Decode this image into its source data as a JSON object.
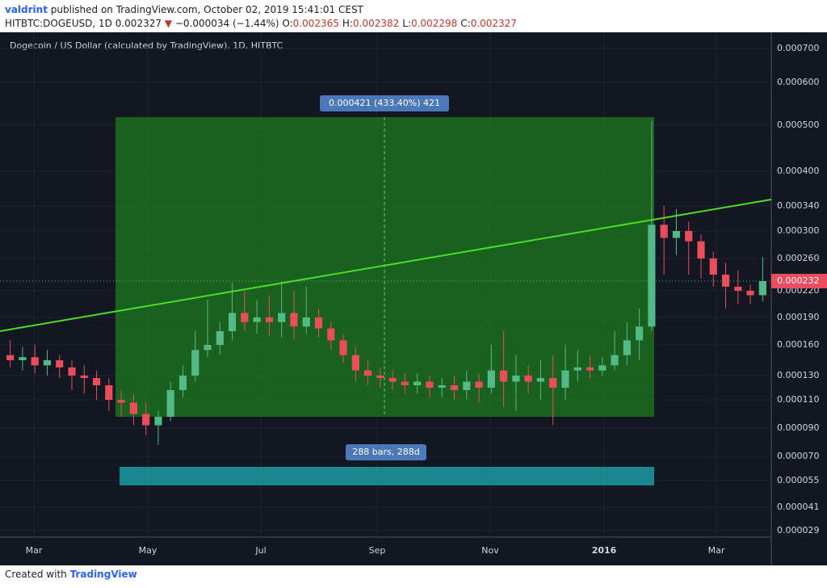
{
  "header": {
    "author": "valdrint",
    "published": "published on TradingView.com, October 02, 2019 15:41:01 CEST",
    "symbol": "HITBTC:DOGEUSD, 1D",
    "last": "0.002327",
    "arrow": "▼",
    "change": "−0.000034 (−1.44%)",
    "ohlc": [
      {
        "label": "O:",
        "value": "0.002365"
      },
      {
        "label": "H:",
        "value": "0.002382"
      },
      {
        "label": "L:",
        "value": "0.002298"
      },
      {
        "label": "C:",
        "value": "0.002327"
      }
    ]
  },
  "chart_data": {
    "type": "candlestick",
    "title": "Dogecoin / US Dollar (calculated by TradingView), 1D, HITBTC",
    "up_color": "#53b987",
    "down_color": "#eb4d5c",
    "open": [
      0.00015,
      0.000145,
      0.000148,
      0.00014,
      0.000145,
      0.000138,
      0.00013,
      0.000128,
      0.000122,
      0.00011,
      0.000108,
      0.0001,
      9.2e-05,
      9.8e-05,
      0.000118,
      0.00013,
      0.000155,
      0.00016,
      0.000175,
      0.000195,
      0.000185,
      0.00019,
      0.000185,
      0.000195,
      0.00018,
      0.00019,
      0.000178,
      0.000165,
      0.00015,
      0.000135,
      0.00013,
      0.000128,
      0.000125,
      0.000122,
      0.000125,
      0.00012,
      0.000122,
      0.000118,
      0.000125,
      0.00012,
      0.000135,
      0.000125,
      0.00013,
      0.000125,
      0.000128,
      0.00012,
      0.000135,
      0.000138,
      0.000135,
      0.00014,
      0.00015,
      0.000165,
      0.00018,
      0.00031,
      0.00029,
      0.0003,
      0.000285,
      0.00026,
      0.00024,
      0.000225,
      0.00022,
      0.000215
    ],
    "high": [
      0.000165,
      0.000158,
      0.00016,
      0.000155,
      0.00015,
      0.000145,
      0.00014,
      0.000135,
      0.000128,
      0.000118,
      0.000115,
      0.000108,
      0.000102,
      0.000125,
      0.00014,
      0.000175,
      0.00021,
      0.000185,
      0.00023,
      0.00022,
      0.00021,
      0.000215,
      0.000232,
      0.00022,
      0.000225,
      0.0002,
      0.000185,
      0.000172,
      0.000158,
      0.000145,
      0.000138,
      0.000135,
      0.000132,
      0.000132,
      0.00013,
      0.000128,
      0.00013,
      0.000135,
      0.000132,
      0.00016,
      0.000175,
      0.00015,
      0.00014,
      0.000145,
      0.00015,
      0.00016,
      0.000155,
      0.00015,
      0.000148,
      0.000175,
      0.000185,
      0.0002,
      0.00051,
      0.00034,
      0.000335,
      0.000315,
      0.000295,
      0.00027,
      0.000255,
      0.000245,
      0.000228,
      0.000262
    ],
    "low": [
      0.000138,
      0.000135,
      0.000132,
      0.00013,
      0.000128,
      0.000118,
      0.000115,
      0.00011,
      0.000102,
      9.8e-05,
      9.2e-05,
      8.5e-05,
      7.8e-05,
      9.5e-05,
      0.000112,
      0.000125,
      0.000148,
      0.00015,
      0.000165,
      0.000175,
      0.000172,
      0.00017,
      0.000168,
      0.000165,
      0.000172,
      0.000168,
      0.000155,
      0.000142,
      0.000125,
      0.000122,
      0.00012,
      0.000118,
      0.000115,
      0.000115,
      0.000112,
      0.000112,
      0.00011,
      0.00011,
      0.000108,
      0.000115,
      0.000105,
      0.000102,
      0.000115,
      0.00011,
      9.2e-05,
      0.00011,
      0.000125,
      0.000128,
      0.00013,
      0.000135,
      0.00014,
      0.000145,
      0.000175,
      0.00024,
      0.000265,
      0.00024,
      0.000235,
      0.000225,
      0.0002,
      0.000205,
      0.000205,
      0.000208
    ],
    "close": [
      0.000145,
      0.000148,
      0.00014,
      0.000145,
      0.000138,
      0.00013,
      0.000128,
      0.000122,
      0.00011,
      0.000108,
      0.0001,
      9.2e-05,
      9.8e-05,
      0.000118,
      0.00013,
      0.000155,
      0.00016,
      0.000175,
      0.000195,
      0.000185,
      0.00019,
      0.000185,
      0.000195,
      0.00018,
      0.00019,
      0.000178,
      0.000165,
      0.00015,
      0.000135,
      0.00013,
      0.000128,
      0.000125,
      0.000122,
      0.000125,
      0.00012,
      0.000122,
      0.000118,
      0.000125,
      0.00012,
      0.000135,
      0.000125,
      0.00013,
      0.000125,
      0.000128,
      0.00012,
      0.000135,
      0.000138,
      0.000135,
      0.00014,
      0.00015,
      0.000165,
      0.00018,
      0.00031,
      0.00029,
      0.0003,
      0.000285,
      0.00026,
      0.00024,
      0.000225,
      0.00022,
      0.000215,
      0.000232
    ],
    "current_price": 0.000232,
    "yticks": [
      {
        "value": 2.9e-05,
        "label": "0.000029"
      },
      {
        "value": 4.1e-05,
        "label": "0.000041"
      },
      {
        "value": 5.5e-05,
        "label": "0.000055"
      },
      {
        "value": 7e-05,
        "label": "0.000070"
      },
      {
        "value": 9e-05,
        "label": "0.000090"
      },
      {
        "value": 0.00011,
        "label": "0.000110"
      },
      {
        "value": 0.00013,
        "label": "0.000130"
      },
      {
        "value": 0.00016,
        "label": "0.000160"
      },
      {
        "value": 0.00019,
        "label": "0.000190"
      },
      {
        "value": 0.00022,
        "label": "0.000220"
      },
      {
        "value": 0.00026,
        "label": "0.000260"
      },
      {
        "value": 0.0003,
        "label": "0.000300"
      },
      {
        "value": 0.00034,
        "label": "0.000340"
      },
      {
        "value": 0.0004,
        "label": "0.000400"
      },
      {
        "value": 0.0005,
        "label": "0.000500"
      },
      {
        "value": 0.0006,
        "label": "0.000600"
      },
      {
        "value": 0.0007,
        "label": "0.000700"
      }
    ],
    "xticks": [
      "Mar",
      "May",
      "Jul",
      "Sep",
      "Nov",
      "2016",
      "Mar"
    ],
    "annotations": {
      "price_range": "0.000421 (433.40%) 421",
      "date_range": "288 bars, 288d"
    }
  },
  "footer": {
    "created": "Created with",
    "brand": "TradingView"
  }
}
